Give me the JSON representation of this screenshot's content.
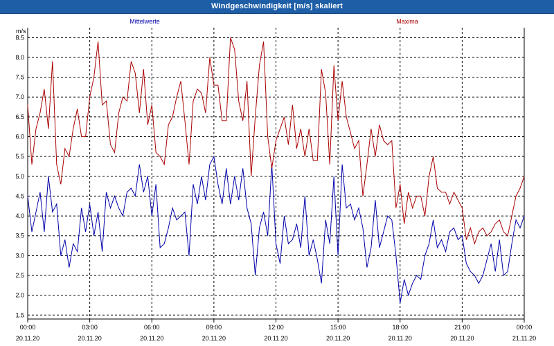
{
  "window": {
    "title": "Windgeschwindigkeit [m/s] skaliert"
  },
  "colors": {
    "title_bar": "#1e5ea7",
    "mean": "#0000aa",
    "max": "#aa0000",
    "grid": "#000000"
  },
  "chart_data": {
    "type": "line",
    "title": "Windgeschwindigkeit [m/s] skaliert",
    "ylabel": "m/s",
    "xlabel": "",
    "ylim": [
      1.4,
      8.75
    ],
    "xlim": [
      0,
      24
    ],
    "grid": true,
    "legend_placement": "top",
    "yticks": [
      "1.5",
      "2.0",
      "2.5",
      "3.0",
      "3.5",
      "4.0",
      "4.5",
      "5.0",
      "5.5",
      "6.0",
      "6.5",
      "7.0",
      "7.5",
      "8.0",
      "8.5"
    ],
    "ytick_values": [
      1.5,
      2.0,
      2.5,
      3.0,
      3.5,
      4.0,
      4.5,
      5.0,
      5.5,
      6.0,
      6.5,
      7.0,
      7.5,
      8.0,
      8.5
    ],
    "xticks": [
      {
        "time": "00:00",
        "date": "20.11.20",
        "hour": 0
      },
      {
        "time": "03:00",
        "date": "20.11.20",
        "hour": 3
      },
      {
        "time": "06:00",
        "date": "20.11.20",
        "hour": 6
      },
      {
        "time": "09:00",
        "date": "20.11.20",
        "hour": 9
      },
      {
        "time": "12:00",
        "date": "20.11.20",
        "hour": 12
      },
      {
        "time": "15:00",
        "date": "20.11.20",
        "hour": 15
      },
      {
        "time": "18:00",
        "date": "20.11.20",
        "hour": 18
      },
      {
        "time": "21:00",
        "date": "20.11.20",
        "hour": 21
      },
      {
        "time": "00:00",
        "date": "21.11.20",
        "hour": 24
      }
    ],
    "series": [
      {
        "name": "Mittelwerte",
        "color": "#0000aa",
        "x": [
          0,
          0.2,
          0.4,
          0.6,
          0.8,
          1.0,
          1.2,
          1.4,
          1.6,
          1.8,
          2.0,
          2.2,
          2.4,
          2.6,
          2.8,
          3.0,
          3.2,
          3.4,
          3.6,
          3.8,
          4.0,
          4.2,
          4.4,
          4.6,
          4.8,
          5.0,
          5.2,
          5.4,
          5.6,
          5.8,
          6.0,
          6.2,
          6.4,
          6.6,
          6.8,
          7.0,
          7.2,
          7.4,
          7.6,
          7.8,
          8.0,
          8.2,
          8.4,
          8.6,
          8.8,
          9.0,
          9.2,
          9.4,
          9.6,
          9.8,
          10.0,
          10.2,
          10.4,
          10.6,
          10.8,
          11.0,
          11.2,
          11.4,
          11.6,
          11.8,
          12.0,
          12.2,
          12.4,
          12.6,
          12.8,
          13.0,
          13.2,
          13.4,
          13.6,
          13.8,
          14.0,
          14.2,
          14.4,
          14.6,
          14.8,
          15.0,
          15.2,
          15.4,
          15.6,
          15.8,
          16.0,
          16.2,
          16.4,
          16.6,
          16.8,
          17.0,
          17.2,
          17.4,
          17.6,
          17.8,
          18.0,
          18.2,
          18.4,
          18.6,
          18.8,
          19.0,
          19.2,
          19.4,
          19.6,
          19.8,
          20.0,
          20.2,
          20.4,
          20.6,
          20.8,
          21.0,
          21.2,
          21.4,
          21.6,
          21.8,
          22.0,
          22.2,
          22.4,
          22.6,
          22.8,
          23.0,
          23.2,
          23.4,
          23.6,
          23.8,
          24.0
        ],
        "values": [
          4.5,
          3.6,
          4.1,
          4.6,
          3.6,
          5.0,
          4.1,
          4.3,
          3.0,
          3.4,
          2.7,
          3.3,
          3.1,
          4.2,
          3.6,
          4.3,
          3.5,
          4.1,
          3.1,
          4.6,
          4.2,
          4.5,
          4.2,
          4.0,
          4.6,
          4.7,
          4.5,
          5.3,
          4.6,
          5.0,
          4.0,
          4.8,
          3.2,
          3.3,
          3.7,
          4.2,
          3.9,
          4.0,
          4.1,
          3.0,
          4.8,
          4.3,
          5.0,
          4.4,
          5.3,
          5.5,
          4.8,
          4.3,
          5.2,
          4.3,
          5.0,
          4.4,
          5.2,
          4.2,
          3.8,
          2.5,
          3.7,
          4.1,
          3.5,
          5.3,
          3.3,
          2.8,
          4.0,
          3.3,
          3.4,
          3.8,
          3.2,
          4.5,
          3.0,
          3.4,
          2.9,
          2.3,
          3.9,
          3.3,
          5.0,
          3.0,
          5.3,
          4.2,
          4.3,
          3.9,
          4.2,
          3.7,
          2.7,
          3.2,
          4.4,
          3.2,
          3.6,
          4.0,
          3.9,
          3.0,
          1.8,
          2.4,
          2.0,
          2.3,
          2.5,
          2.4,
          3.0,
          3.3,
          3.9,
          3.2,
          3.4,
          3.1,
          3.6,
          3.7,
          3.4,
          3.5,
          2.8,
          2.6,
          2.5,
          2.3,
          2.5,
          2.9,
          3.3,
          2.6,
          3.4,
          2.5,
          2.6,
          3.3,
          3.9,
          3.7,
          4.0
        ]
      },
      {
        "name": "Maxima",
        "color": "#aa0000",
        "x": [
          0,
          0.2,
          0.4,
          0.6,
          0.8,
          1.0,
          1.2,
          1.4,
          1.6,
          1.8,
          2.0,
          2.2,
          2.4,
          2.6,
          2.8,
          3.0,
          3.2,
          3.4,
          3.6,
          3.8,
          4.0,
          4.2,
          4.4,
          4.6,
          4.8,
          5.0,
          5.2,
          5.4,
          5.6,
          5.8,
          6.0,
          6.2,
          6.4,
          6.6,
          6.8,
          7.0,
          7.2,
          7.4,
          7.6,
          7.8,
          8.0,
          8.2,
          8.4,
          8.6,
          8.8,
          9.0,
          9.2,
          9.4,
          9.6,
          9.8,
          10.0,
          10.2,
          10.4,
          10.6,
          10.8,
          11.0,
          11.2,
          11.4,
          11.6,
          11.8,
          12.0,
          12.2,
          12.4,
          12.6,
          12.8,
          13.0,
          13.2,
          13.4,
          13.6,
          13.8,
          14.0,
          14.2,
          14.4,
          14.6,
          14.8,
          15.0,
          15.2,
          15.4,
          15.6,
          15.8,
          16.0,
          16.2,
          16.4,
          16.6,
          16.8,
          17.0,
          17.2,
          17.4,
          17.6,
          17.8,
          18.0,
          18.2,
          18.4,
          18.6,
          18.8,
          19.0,
          19.2,
          19.4,
          19.6,
          19.8,
          20.0,
          20.2,
          20.4,
          20.6,
          20.8,
          21.0,
          21.2,
          21.4,
          21.6,
          21.8,
          22.0,
          22.2,
          22.4,
          22.6,
          22.8,
          23.0,
          23.2,
          23.4,
          23.6,
          23.8,
          24.0
        ],
        "values": [
          6.8,
          5.3,
          6.2,
          6.6,
          7.2,
          6.2,
          7.9,
          5.3,
          4.8,
          5.7,
          5.5,
          6.2,
          6.7,
          6.0,
          6.0,
          7.0,
          7.5,
          8.4,
          6.8,
          6.9,
          5.8,
          5.6,
          6.6,
          7.0,
          6.9,
          7.9,
          7.6,
          6.6,
          7.7,
          6.3,
          6.8,
          5.6,
          5.5,
          5.3,
          6.3,
          6.5,
          7.0,
          7.4,
          6.4,
          5.3,
          6.9,
          7.2,
          7.1,
          6.6,
          8.0,
          7.3,
          7.3,
          6.4,
          6.4,
          8.5,
          8.2,
          6.9,
          6.4,
          7.4,
          5.0,
          6.5,
          7.8,
          8.4,
          6.0,
          5.2,
          5.9,
          6.2,
          6.5,
          5.8,
          6.8,
          5.7,
          6.2,
          5.5,
          6.2,
          5.4,
          5.4,
          7.7,
          7.1,
          5.3,
          7.8,
          6.4,
          7.4,
          6.5,
          6.1,
          5.7,
          5.9,
          4.5,
          5.3,
          6.2,
          5.5,
          6.3,
          5.9,
          5.8,
          5.9,
          4.2,
          4.8,
          3.8,
          4.6,
          4.2,
          4.5,
          4.5,
          4.0,
          5.0,
          5.5,
          4.7,
          4.6,
          4.6,
          4.3,
          4.6,
          4.4,
          4.2,
          3.4,
          3.7,
          3.3,
          3.6,
          3.7,
          3.5,
          3.6,
          3.8,
          3.9,
          3.6,
          3.5,
          4.0,
          4.5,
          4.7,
          5.0
        ]
      }
    ]
  }
}
